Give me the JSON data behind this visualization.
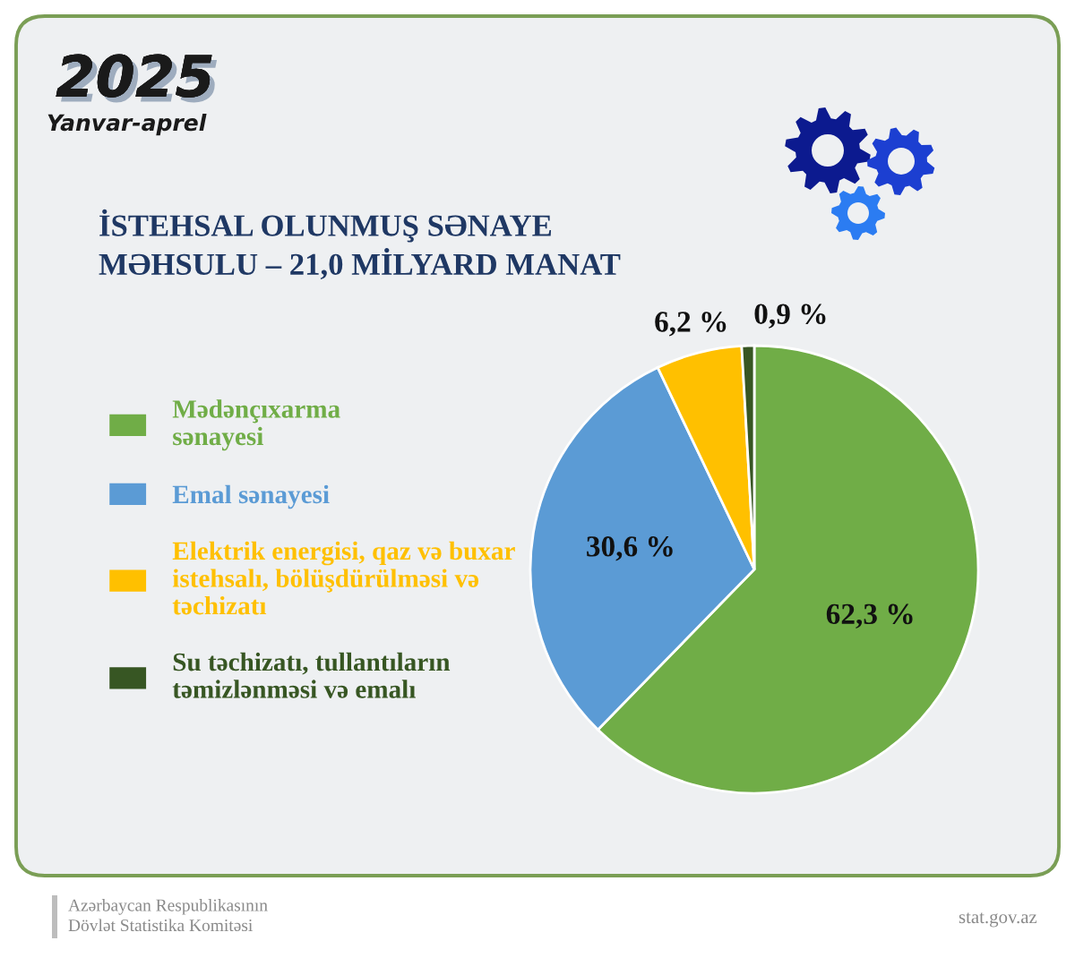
{
  "chart_data": {
    "type": "pie",
    "title": "İSTEHSAL OLUNMUŞ SƏNAYE\nMƏHSULU – 21,0 MİLYARD MANAT",
    "categories": [
      "Mədənçıxarma\nsənayesi",
      "Emal sənayesi",
      "Elektrik energisi, qaz və buxar\nistehsalı, bölüşdürülməsi və\ntəchizatı",
      "Su təchizatı, tullantıların\ntəmizlənməsi və emalı"
    ],
    "values": [
      62.3,
      30.6,
      6.2,
      0.9
    ],
    "colors": [
      "#70ad47",
      "#5b9bd5",
      "#ffc000",
      "#375623"
    ],
    "value_labels": [
      "62,3 %",
      "30,6 %",
      "6,2 %",
      "0,9 %"
    ],
    "legend": "left",
    "annotations": [
      "2025",
      "Yanvar-aprel",
      "Azərbaycan Respublikasının\nDövlət Statistika Komitəsi",
      "stat.gov.az"
    ]
  }
}
